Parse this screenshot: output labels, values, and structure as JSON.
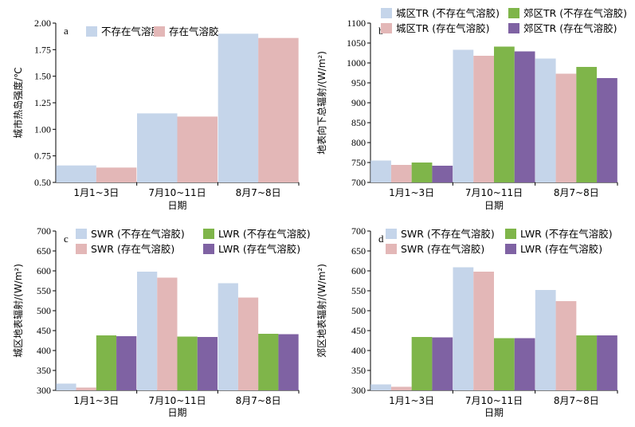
{
  "colors": {
    "light_blue": "#c5d5ea",
    "light_pink": "#e3b7b7",
    "green": "#7fb54a",
    "purple": "#7f62a3"
  },
  "chart_data": [
    {
      "id": "a",
      "type": "bar",
      "panel_label": "a",
      "categories": [
        "1月1~3日",
        "7月10~11日",
        "8月7~8日"
      ],
      "xlabel": "日期",
      "ylabel": "城市热岛强度/℃",
      "ylim": [
        0.5,
        2.0
      ],
      "yticks": [
        "0.50",
        "0.75",
        "1.00",
        "1.25",
        "1.50",
        "1.75",
        "2.00"
      ],
      "legend_position": "top",
      "legend_columns": 2,
      "series": [
        {
          "name": "不存在气溶胶",
          "color": "#c5d5ea",
          "values": [
            0.66,
            1.15,
            1.9
          ]
        },
        {
          "name": "存在气溶胶",
          "color": "#e3b7b7",
          "values": [
            0.64,
            1.12,
            1.86
          ]
        }
      ]
    },
    {
      "id": "b",
      "type": "bar",
      "panel_label": "b",
      "categories": [
        "1月1~3日",
        "7月10~11日",
        "8月7~8日"
      ],
      "xlabel": "日期",
      "ylabel": "地表向下总辐射/(W/m²)",
      "ylim": [
        700,
        1100
      ],
      "yticks": [
        "700",
        "750",
        "800",
        "850",
        "900",
        "950",
        "1000",
        "1050",
        "1100"
      ],
      "legend_position": "top",
      "legend_columns": 2,
      "series": [
        {
          "name": "城区TR (不存在气溶胶)",
          "color": "#c5d5ea",
          "values": [
            755,
            1033,
            1011
          ]
        },
        {
          "name": "城区TR (存在气溶胶)",
          "color": "#e3b7b7",
          "values": [
            744,
            1018,
            973
          ]
        },
        {
          "name": "郊区TR (不存在气溶胶)",
          "color": "#7fb54a",
          "values": [
            750,
            1041,
            990
          ]
        },
        {
          "name": "郊区TR (存在气溶胶)",
          "color": "#7f62a3",
          "values": [
            742,
            1029,
            962
          ]
        }
      ]
    },
    {
      "id": "c",
      "type": "bar",
      "panel_label": "c",
      "categories": [
        "1月1~3日",
        "7月10~11日",
        "8月7~8日"
      ],
      "xlabel": "日期",
      "ylabel": "城区地表辐射/(W/m²)",
      "ylim": [
        300,
        700
      ],
      "yticks": [
        "300",
        "350",
        "400",
        "450",
        "500",
        "550",
        "600",
        "650",
        "700"
      ],
      "legend_position": "top",
      "legend_columns": 2,
      "series": [
        {
          "name": "SWR (不存在气溶胶)",
          "color": "#c5d5ea",
          "values": [
            317,
            598,
            569
          ]
        },
        {
          "name": "SWR (存在气溶胶)",
          "color": "#e3b7b7",
          "values": [
            307,
            583,
            533
          ]
        },
        {
          "name": "LWR (不存在气溶胶)",
          "color": "#7fb54a",
          "values": [
            438,
            435,
            442
          ]
        },
        {
          "name": "LWR (存在气溶胶)",
          "color": "#7f62a3",
          "values": [
            436,
            434,
            441
          ]
        }
      ]
    },
    {
      "id": "d",
      "type": "bar",
      "panel_label": "d",
      "categories": [
        "1月1~3日",
        "7月10~11日",
        "8月7~8日"
      ],
      "xlabel": "日期",
      "ylabel": "郊区地表辐射/(W/m²)",
      "ylim": [
        300,
        700
      ],
      "yticks": [
        "300",
        "350",
        "400",
        "450",
        "500",
        "550",
        "600",
        "650",
        "700"
      ],
      "legend_position": "top",
      "legend_columns": 2,
      "series": [
        {
          "name": "SWR (不存在气溶胶)",
          "color": "#c5d5ea",
          "values": [
            315,
            609,
            552
          ]
        },
        {
          "name": "SWR (存在气溶胶)",
          "color": "#e3b7b7",
          "values": [
            309,
            598,
            524
          ]
        },
        {
          "name": "LWR (不存在气溶胶)",
          "color": "#7fb54a",
          "values": [
            434,
            431,
            438
          ]
        },
        {
          "name": "LWR (存在气溶胶)",
          "color": "#7f62a3",
          "values": [
            433,
            431,
            438
          ]
        }
      ]
    }
  ]
}
